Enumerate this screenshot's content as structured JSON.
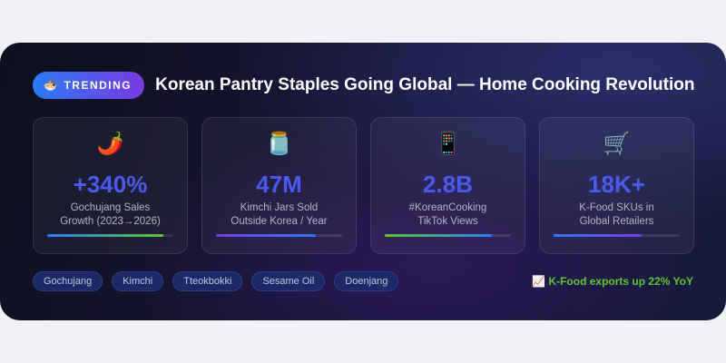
{
  "badge": {
    "icon": "🍜",
    "label": "TRENDING"
  },
  "title": "Korean Pantry Staples Going Global — Home Cooking Revolution",
  "stats": [
    {
      "icon": "🌶️",
      "value": "+340%",
      "label1": "Gochujang Sales",
      "label2": "Growth (2023→2026)",
      "progress": 92,
      "gradient": [
        "#2a7bf5",
        "#5ac832"
      ]
    },
    {
      "icon": "🫙",
      "value": "47M",
      "label1": "Kimchi Jars Sold",
      "label2": "Outside Korea / Year",
      "progress": 79,
      "gradient": [
        "#7a3ae0",
        "#2a7bf5"
      ]
    },
    {
      "icon": "📱",
      "value": "2.8B",
      "label1": "#KoreanCooking",
      "label2": "TikTok Views",
      "progress": 85,
      "gradient": [
        "#5ac832",
        "#2a7bf5"
      ]
    },
    {
      "icon": "🛒",
      "value": "18K+",
      "label1": "K-Food SKUs in",
      "label2": "Global Retailers",
      "progress": 70,
      "gradient": [
        "#2a7bf5",
        "#7a3ae0"
      ]
    }
  ],
  "tags": [
    "Gochujang",
    "Kimchi",
    "Tteokbokki",
    "Sesame Oil",
    "Doenjang"
  ],
  "note": {
    "icon": "📈",
    "text": "K-Food exports up 22% YoY"
  },
  "colors": {
    "accent": "#4a5af0",
    "positive": "#5ac832"
  }
}
